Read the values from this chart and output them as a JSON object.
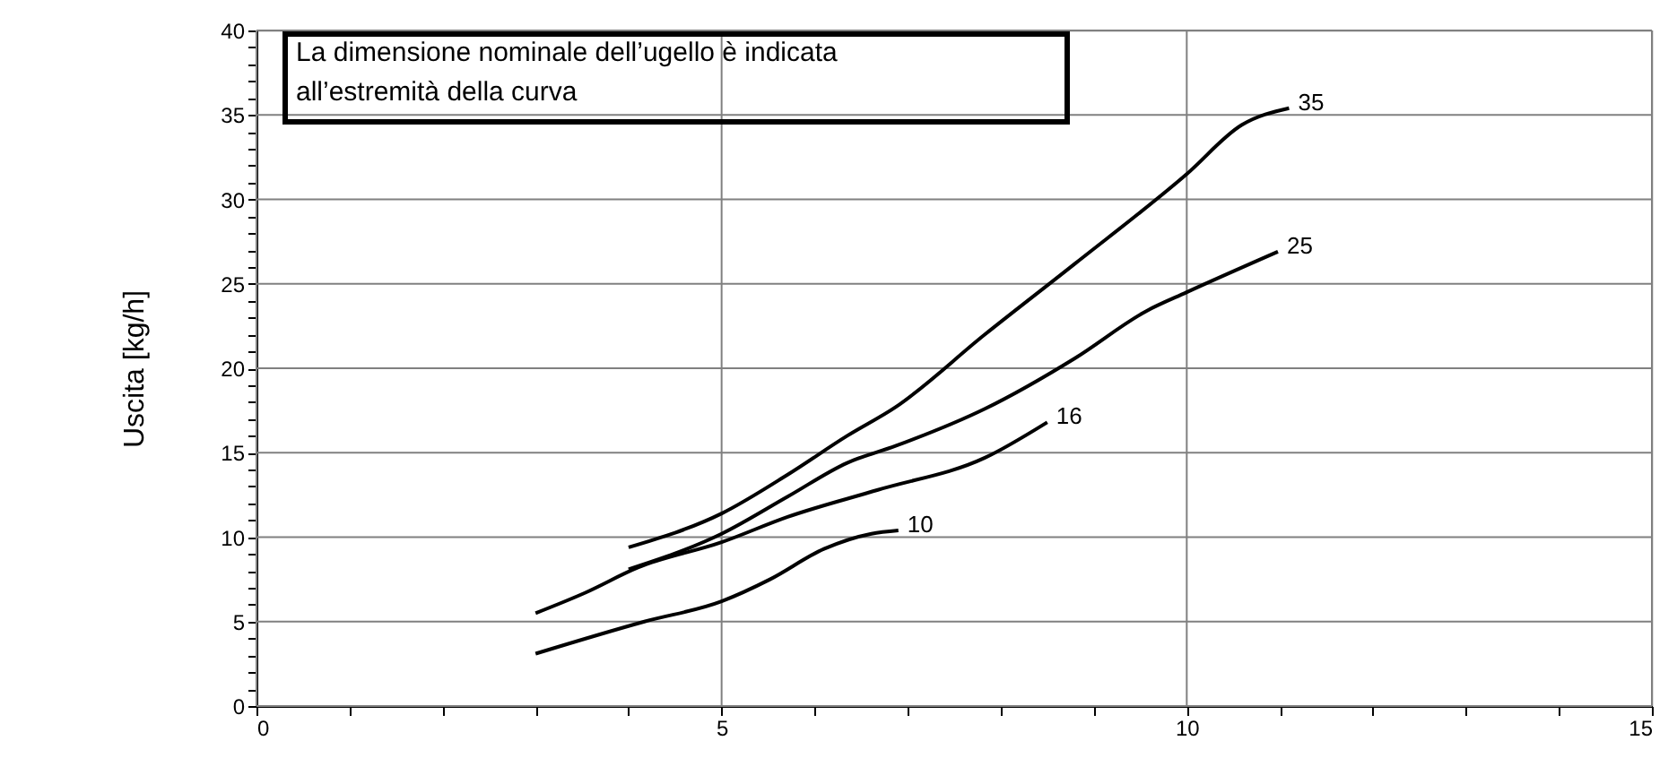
{
  "chart_data": {
    "type": "line",
    "ylabel": "Uscita [kg/h]",
    "annotations": [
      "La dimensione nominale dell’ugello è indicata all’estremità della curva"
    ],
    "series": [
      {
        "name": "10",
        "color": "#000000",
        "x": [
          3.0,
          4.17,
          5.0,
          5.52,
          6.1,
          6.61,
          6.9
        ],
        "values": [
          3.1,
          5.0,
          6.2,
          7.5,
          9.3,
          10.2,
          10.4
        ]
      },
      {
        "name": "16",
        "color": "#000000",
        "x": [
          3.0,
          3.53,
          4.1,
          5.0,
          5.71,
          6.68,
          7.83,
          8.5
        ],
        "values": [
          5.5,
          6.7,
          8.2,
          9.7,
          11.2,
          12.8,
          14.7,
          16.8
        ]
      },
      {
        "name": "25",
        "color": "#000000",
        "x": [
          4.0,
          5.0,
          5.71,
          6.35,
          6.87,
          7.83,
          8.8,
          9.57,
          10.0,
          10.98
        ],
        "values": [
          8.1,
          10.2,
          12.4,
          14.4,
          15.4,
          17.6,
          20.6,
          23.4,
          24.5,
          26.9
        ]
      },
      {
        "name": "35",
        "color": "#000000",
        "x": [
          4.0,
          5.0,
          5.71,
          6.35,
          6.87,
          7.83,
          8.8,
          10.0,
          10.59,
          11.1
        ],
        "values": [
          9.4,
          11.4,
          13.7,
          16.0,
          17.7,
          22.0,
          26.2,
          31.5,
          34.4,
          35.4
        ]
      }
    ],
    "xlim": [
      0,
      15
    ],
    "xticks": [
      0,
      {
        "value": 1,
        "label": null
      },
      {
        "value": 2,
        "label": null
      },
      {
        "value": 3,
        "label": null
      },
      {
        "value": 4,
        "label": null
      },
      5,
      {
        "value": 6,
        "label": null
      },
      {
        "value": 7,
        "label": null
      },
      {
        "value": 8,
        "label": null
      },
      {
        "value": 9,
        "label": null
      },
      10,
      {
        "value": 11,
        "label": null
      },
      {
        "value": 12,
        "label": null
      },
      {
        "value": 13,
        "label": null
      },
      {
        "value": 14,
        "label": null
      },
      15
    ],
    "ylim": [
      0,
      40
    ],
    "yticks": [
      0,
      {
        "value": 1,
        "label": null
      },
      {
        "value": 2,
        "label": null
      },
      {
        "value": 3,
        "label": null
      },
      {
        "value": 4,
        "label": null
      },
      5,
      {
        "value": 6,
        "label": null
      },
      {
        "value": 7,
        "label": null
      },
      {
        "value": 8,
        "label": null
      },
      {
        "value": 9,
        "label": null
      },
      10,
      {
        "value": 11,
        "label": null
      },
      {
        "value": 12,
        "label": null
      },
      {
        "value": 13,
        "label": null
      },
      {
        "value": 14,
        "label": null
      },
      15,
      {
        "value": 16,
        "label": null
      },
      {
        "value": 17,
        "label": null
      },
      {
        "value": 18,
        "label": null
      },
      {
        "value": 19,
        "label": null
      },
      20,
      {
        "value": 21,
        "label": null
      },
      {
        "value": 22,
        "label": null
      },
      {
        "value": 23,
        "label": null
      },
      {
        "value": 24,
        "label": null
      },
      25,
      {
        "value": 26,
        "label": null
      },
      {
        "value": 27,
        "label": null
      },
      {
        "value": 28,
        "label": null
      },
      {
        "value": 29,
        "label": null
      },
      30,
      {
        "value": 31,
        "label": null
      },
      {
        "value": 32,
        "label": null
      },
      {
        "value": 33,
        "label": null
      },
      {
        "value": 34,
        "label": null
      },
      35,
      {
        "value": 36,
        "label": null
      },
      {
        "value": 37,
        "label": null
      },
      {
        "value": 38,
        "label": null
      },
      {
        "value": 39,
        "label": null
      },
      40
    ],
    "grid": true,
    "line_style": "solid",
    "marker": "none"
  }
}
